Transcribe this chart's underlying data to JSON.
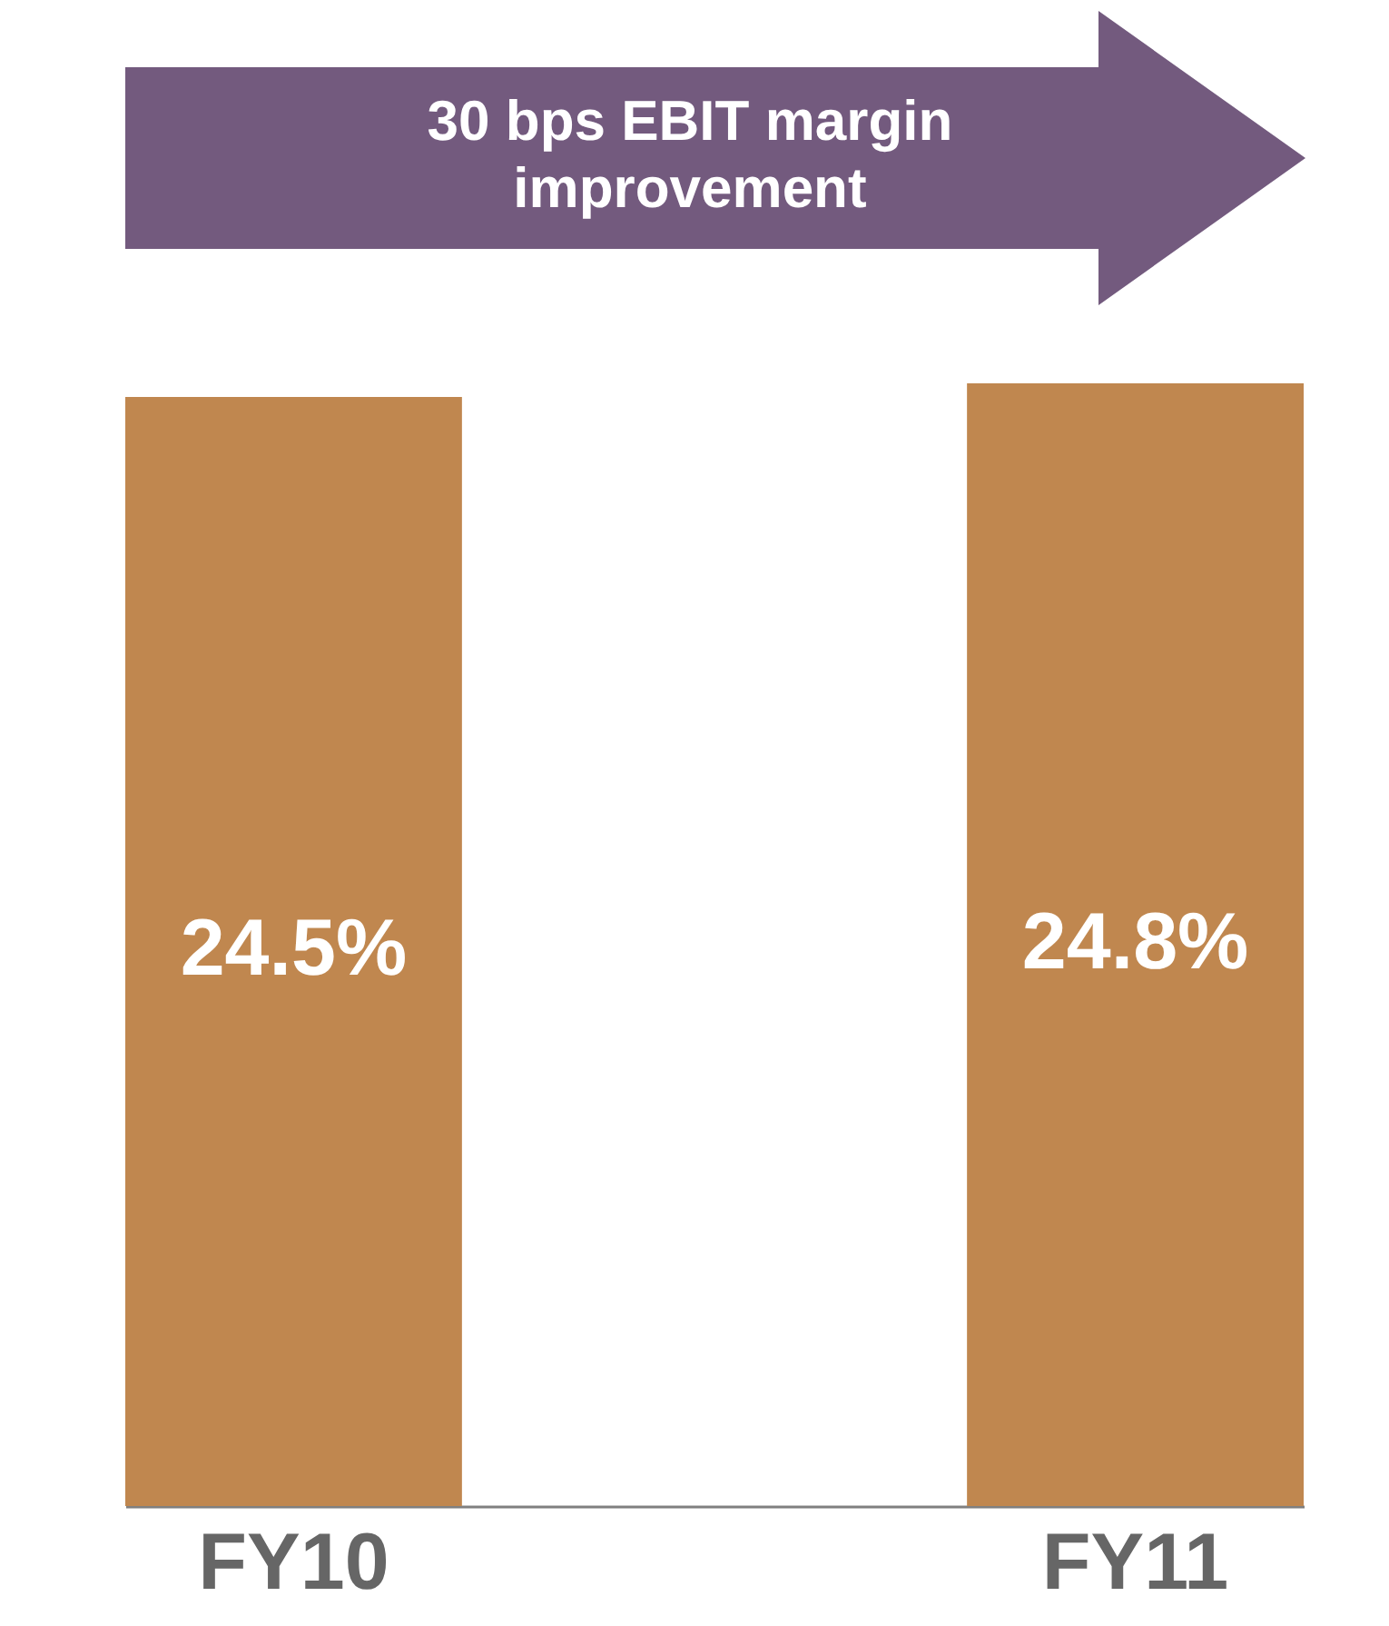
{
  "chart_data": {
    "type": "bar",
    "categories": [
      "FY10",
      "FY11"
    ],
    "values": [
      24.5,
      24.8
    ],
    "value_labels": [
      "24.5%",
      "24.8%"
    ],
    "color": "#c0874f",
    "annotations": [
      "30 bps EBIT margin improvement"
    ]
  }
}
